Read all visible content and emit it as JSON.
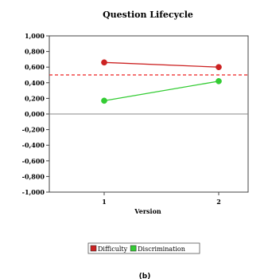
{
  "chart_data": {
    "type": "line",
    "title": "Question Lifecycle",
    "xlabel": "Version",
    "ylabel": "",
    "categories": [
      "1",
      "2"
    ],
    "ylim": [
      -1.0,
      1.0
    ],
    "yticks": [
      "1,000",
      "0,800",
      "0,600",
      "0,400",
      "0,200",
      "0,000",
      "-0,200",
      "-0,400",
      "-0,600",
      "-0,800",
      "-1,000"
    ],
    "ytick_values": [
      1.0,
      0.8,
      0.6,
      0.4,
      0.2,
      0.0,
      -0.2,
      -0.4,
      -0.6,
      -0.8,
      -1.0
    ],
    "series": [
      {
        "name": "Difficulty",
        "values": [
          0.66,
          0.6
        ],
        "color": "#cc2222"
      },
      {
        "name": "Discrimination",
        "values": [
          0.17,
          0.42
        ],
        "color": "#33cc33"
      }
    ],
    "reference_line": {
      "value": 0.5,
      "color": "#ee2222",
      "style": "dashed"
    },
    "zero_line": {
      "value": 0.0,
      "color": "#888888"
    },
    "grid": false,
    "legend_position": "bottom"
  },
  "caption": "(b)"
}
